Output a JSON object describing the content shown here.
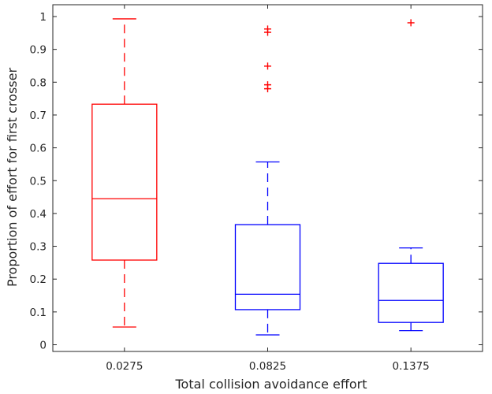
{
  "chart_data": {
    "type": "box",
    "xlabel": "Total collision avoidance effort",
    "ylabel": "Proportion of effort for first crosser",
    "ylim": [
      -0.02,
      1.03
    ],
    "yticks": [
      0,
      0.1,
      0.2,
      0.3,
      0.4,
      0.5,
      0.6,
      0.7,
      0.8,
      0.9,
      1
    ],
    "ytick_labels": [
      "0",
      "0.1",
      "0.2",
      "0.3",
      "0.4",
      "0.5",
      "0.6",
      "0.7",
      "0.8",
      "0.9",
      "1"
    ],
    "categories": [
      "0.0275",
      "0.0825",
      "0.1375"
    ],
    "boxes": [
      {
        "category": "0.0275",
        "color": "#ff0000",
        "whisker_low": 0.054,
        "q1": 0.258,
        "median": 0.445,
        "q3": 0.733,
        "whisker_high": 0.993,
        "outliers": []
      },
      {
        "category": "0.0825",
        "color": "#0000ff",
        "whisker_low": 0.03,
        "q1": 0.107,
        "median": 0.154,
        "q3": 0.366,
        "whisker_high": 0.557,
        "outliers": [
          0.78,
          0.792,
          0.849,
          0.952,
          0.962
        ],
        "outlier_color": "#ff0000"
      },
      {
        "category": "0.1375",
        "color": "#0000ff",
        "whisker_low": 0.043,
        "q1": 0.068,
        "median": 0.135,
        "q3": 0.248,
        "whisker_high": 0.295,
        "outliers": [
          0.981
        ],
        "outlier_color": "#ff0000"
      }
    ]
  }
}
